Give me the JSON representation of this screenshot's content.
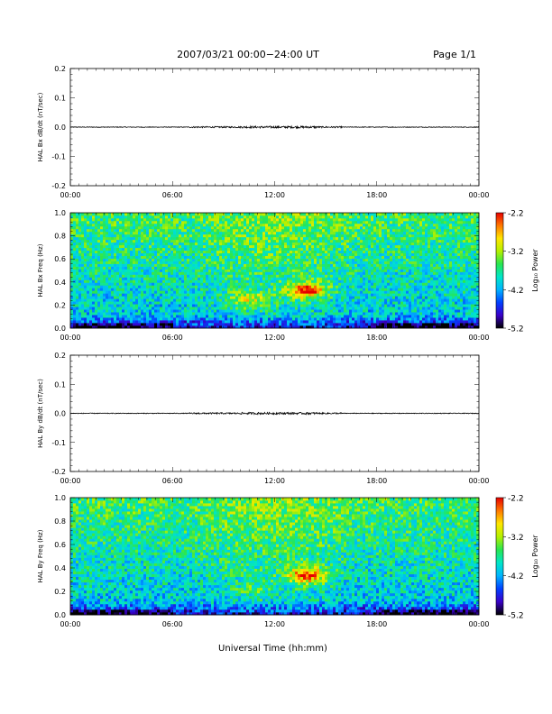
{
  "header": {
    "title": "2007/03/21  00:00−24:00 UT",
    "page": "Page 1/1"
  },
  "colors": {
    "colorbar_stops": [
      "#000000",
      "#3a00c8",
      "#0040ff",
      "#00b4ff",
      "#00e6c8",
      "#28e650",
      "#b4f000",
      "#ffe600",
      "#ff7800",
      "#e60000"
    ]
  },
  "chart_data": [
    {
      "type": "line",
      "ylabel": "HAL Bx dB/dt (nT/sec)",
      "ylim": [
        -0.2,
        0.2
      ],
      "yticks": [
        "0.2",
        "0.1",
        "0.0",
        "-0.1",
        "-0.2"
      ],
      "xticks": [
        "00:00",
        "06:00",
        "12:00",
        "18:00",
        "00:00"
      ],
      "xlim_hours": [
        0,
        24
      ],
      "baseline": 0.0,
      "series": [
        {
          "x_hours": [
            0,
            24
          ],
          "values": [
            0.0,
            0.0
          ]
        }
      ]
    },
    {
      "type": "heatmap",
      "ylabel": "HAL Bx Freq (Hz)",
      "ylim": [
        0,
        1
      ],
      "yticks": [
        "1.0",
        "0.8",
        "0.6",
        "0.4",
        "0.2",
        "0.0"
      ],
      "xticks": [
        "00:00",
        "06:00",
        "12:00",
        "18:00",
        "00:00"
      ],
      "xlim_hours": [
        0,
        24
      ],
      "colorbar": {
        "label": "Log₁₀ Power",
        "range": [
          -5.2,
          -2.2
        ],
        "ticks": [
          "-2.2",
          "-3.2",
          "-4.2",
          "-5.2"
        ]
      },
      "features": [
        {
          "t_hours": 13.9,
          "f_hz": 0.33,
          "log_power": -2.4
        },
        {
          "t_hours": 10.5,
          "f_hz": 0.25,
          "log_power": -3.1
        }
      ]
    },
    {
      "type": "line",
      "ylabel": "HAL By dB/dt (nT/sec)",
      "ylim": [
        -0.2,
        0.2
      ],
      "yticks": [
        "0.2",
        "0.1",
        "0.0",
        "-0.1",
        "-0.2"
      ],
      "xticks": [
        "00:00",
        "06:00",
        "12:00",
        "18:00",
        "00:00"
      ],
      "xlim_hours": [
        0,
        24
      ],
      "baseline": 0.0,
      "series": [
        {
          "x_hours": [
            0,
            24
          ],
          "values": [
            0.0,
            0.0
          ]
        }
      ]
    },
    {
      "type": "heatmap",
      "ylabel": "HAL By Freq (Hz)",
      "ylim": [
        0,
        1
      ],
      "yticks": [
        "1.0",
        "0.8",
        "0.6",
        "0.4",
        "0.2",
        "0.0"
      ],
      "xticks": [
        "00:00",
        "06:00",
        "12:00",
        "18:00",
        "00:00"
      ],
      "xlim_hours": [
        0,
        24
      ],
      "xlabel": "Universal Time (hh:mm)",
      "colorbar": {
        "label": "Log₁₀ Power",
        "range": [
          -5.2,
          -2.2
        ],
        "ticks": [
          "-2.2",
          "-3.2",
          "-4.2",
          "-5.2"
        ]
      },
      "features": [
        {
          "t_hours": 13.9,
          "f_hz": 0.34,
          "log_power": -2.5
        },
        {
          "t_hours": 10.8,
          "f_hz": 0.22,
          "log_power": -3.6
        }
      ]
    }
  ]
}
